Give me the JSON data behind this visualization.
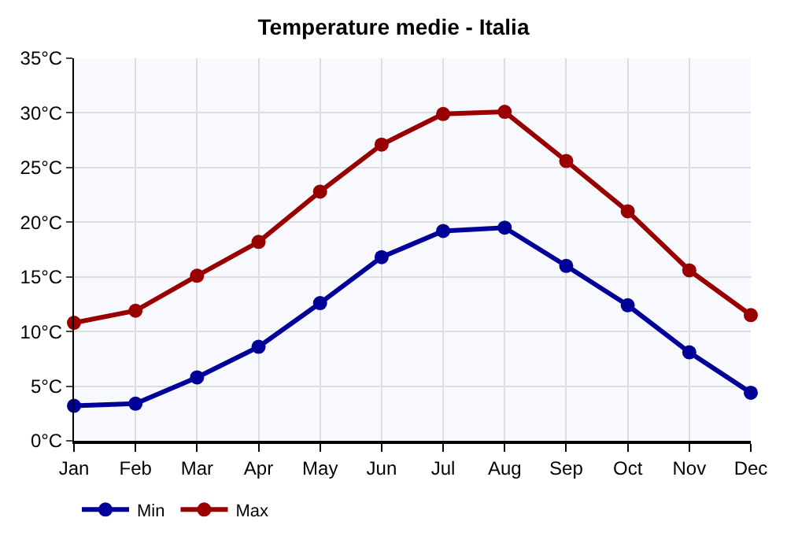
{
  "chart_data": {
    "type": "line",
    "title": "Temperature medie - Italia",
    "categories": [
      "Jan",
      "Feb",
      "Mar",
      "Apr",
      "May",
      "Jun",
      "Jul",
      "Aug",
      "Sep",
      "Oct",
      "Nov",
      "Dec"
    ],
    "series": [
      {
        "name": "Min",
        "color": "#000099",
        "values": [
          3.2,
          3.4,
          5.8,
          8.6,
          12.6,
          16.8,
          19.2,
          19.5,
          16.0,
          12.4,
          8.1,
          4.4
        ]
      },
      {
        "name": "Max",
        "color": "#990000",
        "values": [
          10.8,
          11.9,
          15.1,
          18.2,
          22.8,
          27.1,
          29.9,
          30.1,
          25.6,
          21.0,
          15.6,
          11.5
        ]
      }
    ],
    "ylim": [
      0,
      35
    ],
    "yticks": [
      {
        "value": 0,
        "label": "0°C"
      },
      {
        "value": 5,
        "label": "5°C"
      },
      {
        "value": 10,
        "label": "10°C"
      },
      {
        "value": 15,
        "label": "15°C"
      },
      {
        "value": 20,
        "label": "20°C"
      },
      {
        "value": 25,
        "label": "25°C"
      },
      {
        "value": 30,
        "label": "30°C"
      },
      {
        "value": 35,
        "label": "35°C"
      }
    ],
    "grid": true,
    "legend": "bottom left",
    "marker": "circle",
    "line_style": "solid"
  }
}
